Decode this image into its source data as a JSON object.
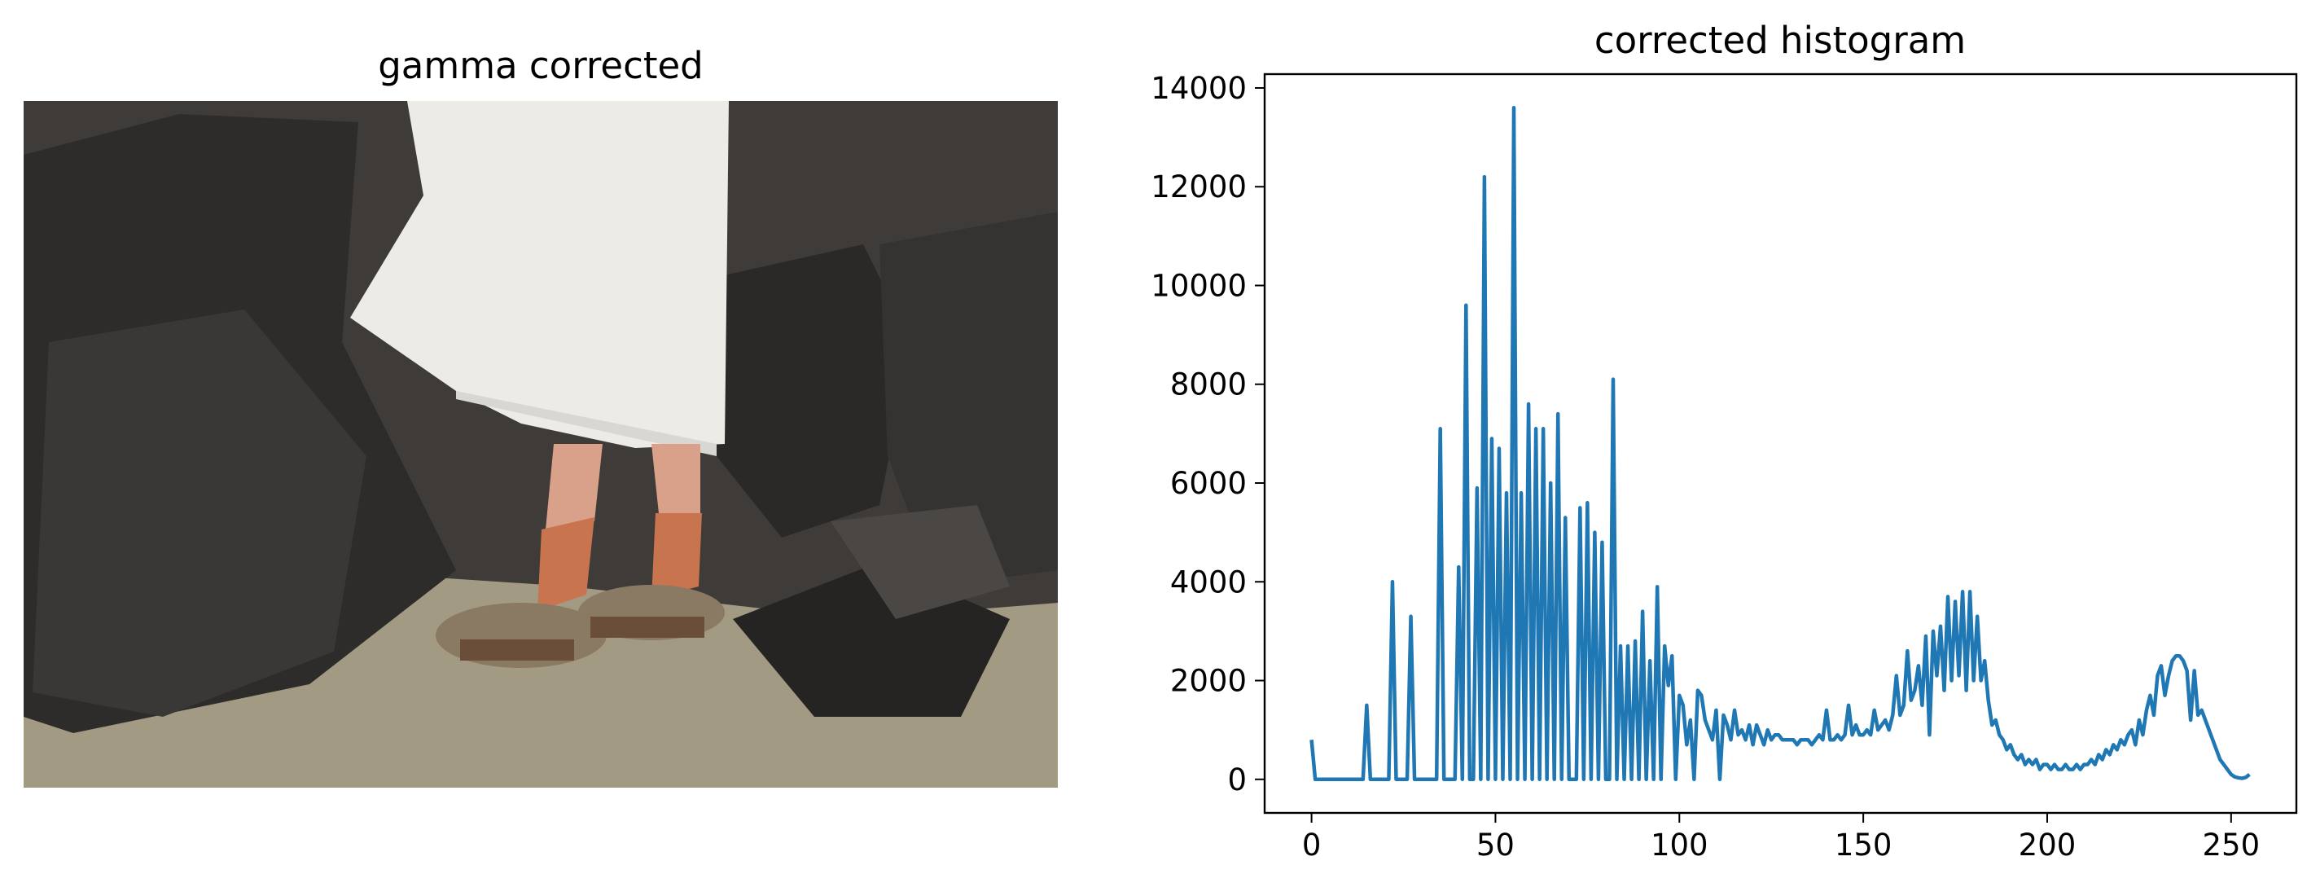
{
  "image_panel": {
    "title": "gamma corrected"
  },
  "chart_data": {
    "type": "line",
    "title": "corrected histogram",
    "color": "#1f77b4",
    "xlim": [
      -12.75,
      267.75
    ],
    "xticks": [
      0,
      50,
      100,
      150,
      200,
      250
    ],
    "ylim": [
      -680,
      14280
    ],
    "yticks": [
      0,
      2000,
      4000,
      6000,
      8000,
      10000,
      12000,
      14000
    ],
    "x": [
      0,
      1,
      2,
      3,
      4,
      5,
      6,
      7,
      8,
      9,
      10,
      11,
      12,
      13,
      14,
      15,
      16,
      17,
      18,
      19,
      20,
      21,
      22,
      23,
      24,
      25,
      26,
      27,
      28,
      29,
      30,
      31,
      32,
      33,
      34,
      35,
      36,
      37,
      38,
      39,
      40,
      41,
      42,
      43,
      44,
      45,
      46,
      47,
      48,
      49,
      50,
      51,
      52,
      53,
      54,
      55,
      56,
      57,
      58,
      59,
      60,
      61,
      62,
      63,
      64,
      65,
      66,
      67,
      68,
      69,
      70,
      71,
      72,
      73,
      74,
      75,
      76,
      77,
      78,
      79,
      80,
      81,
      82,
      83,
      84,
      85,
      86,
      87,
      88,
      89,
      90,
      91,
      92,
      93,
      94,
      95,
      96,
      97,
      98,
      99,
      100,
      101,
      102,
      103,
      104,
      105,
      106,
      107,
      108,
      109,
      110,
      111,
      112,
      113,
      114,
      115,
      116,
      117,
      118,
      119,
      120,
      121,
      122,
      123,
      124,
      125,
      126,
      127,
      128,
      129,
      130,
      131,
      132,
      133,
      134,
      135,
      136,
      137,
      138,
      139,
      140,
      141,
      142,
      143,
      144,
      145,
      146,
      147,
      148,
      149,
      150,
      151,
      152,
      153,
      154,
      155,
      156,
      157,
      158,
      159,
      160,
      161,
      162,
      163,
      164,
      165,
      166,
      167,
      168,
      169,
      170,
      171,
      172,
      173,
      174,
      175,
      176,
      177,
      178,
      179,
      180,
      181,
      182,
      183,
      184,
      185,
      186,
      187,
      188,
      189,
      190,
      191,
      192,
      193,
      194,
      195,
      196,
      197,
      198,
      199,
      200,
      201,
      202,
      203,
      204,
      205,
      206,
      207,
      208,
      209,
      210,
      211,
      212,
      213,
      214,
      215,
      216,
      217,
      218,
      219,
      220,
      221,
      222,
      223,
      224,
      225,
      226,
      227,
      228,
      229,
      230,
      231,
      232,
      233,
      234,
      235,
      236,
      237,
      238,
      239,
      240,
      241,
      242,
      243,
      244,
      245,
      246,
      247,
      248,
      249,
      250,
      251,
      252,
      253,
      254,
      255
    ],
    "values": [
      800,
      0,
      0,
      0,
      0,
      0,
      0,
      0,
      0,
      0,
      0,
      0,
      0,
      0,
      0,
      1500,
      0,
      0,
      0,
      0,
      0,
      0,
      4000,
      0,
      0,
      0,
      0,
      3300,
      0,
      0,
      0,
      0,
      0,
      0,
      0,
      7100,
      0,
      0,
      0,
      0,
      4300,
      0,
      9600,
      0,
      0,
      5900,
      0,
      12200,
      0,
      6900,
      0,
      6700,
      0,
      5800,
      0,
      13600,
      0,
      5800,
      0,
      7600,
      0,
      7100,
      0,
      7100,
      0,
      6000,
      0,
      7400,
      0,
      5300,
      0,
      0,
      0,
      5500,
      0,
      5600,
      0,
      5000,
      0,
      4800,
      0,
      0,
      8100,
      0,
      2700,
      0,
      2700,
      0,
      2800,
      0,
      3400,
      0,
      2400,
      0,
      3900,
      0,
      2700,
      1900,
      2500,
      0,
      1700,
      1500,
      700,
      1200,
      0,
      1800,
      1700,
      1200,
      1000,
      800,
      1400,
      0,
      1300,
      1100,
      800,
      1400,
      900,
      1000,
      800,
      1100,
      700,
      1100,
      900,
      700,
      1000,
      800,
      900,
      900,
      800,
      800,
      800,
      800,
      700,
      800,
      800,
      800,
      700,
      800,
      900,
      800,
      1400,
      800,
      800,
      900,
      800,
      900,
      1500,
      900,
      1100,
      900,
      900,
      1000,
      900,
      1400,
      1000,
      1100,
      1200,
      1000,
      1300,
      2100,
      1300,
      1500,
      2600,
      1600,
      1800,
      2300,
      1500,
      2900,
      900,
      3000,
      2100,
      3100,
      1800,
      3700,
      2000,
      3600,
      2100,
      3800,
      1800,
      3800,
      2000,
      3300,
      2000,
      2400,
      1600,
      1100,
      1200,
      900,
      800,
      600,
      700,
      500,
      400,
      500,
      300,
      400,
      300,
      400,
      200,
      300,
      300,
      200,
      300,
      200,
      200,
      300,
      200,
      200,
      300,
      200,
      300,
      300,
      400,
      300,
      500,
      400,
      600,
      500,
      700,
      600,
      800,
      700,
      900,
      1000,
      700,
      1200,
      900,
      1400,
      1700,
      1300,
      2100,
      2300,
      1700,
      2100,
      2400,
      2500,
      2500,
      2400,
      2200,
      1200,
      2200,
      1300,
      1400,
      1200,
      1000,
      800,
      600,
      400,
      300,
      200,
      100,
      50,
      30,
      20,
      40,
      100
    ]
  }
}
